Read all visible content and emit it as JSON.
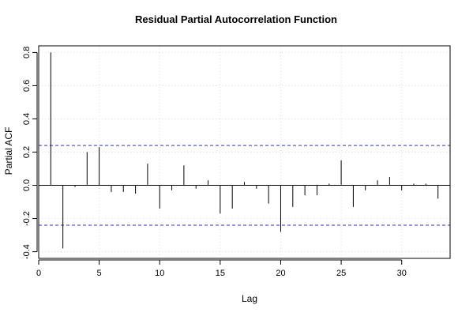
{
  "chart_data": {
    "type": "bar",
    "title": "Residual Partial Autocorrelation Function",
    "xlabel": "Lag",
    "ylabel": "Partial ACF",
    "xlim": [
      0,
      34
    ],
    "ylim": [
      -0.44,
      0.84
    ],
    "x_ticks": [
      0,
      5,
      10,
      15,
      20,
      25,
      30
    ],
    "y_ticks": [
      -0.4,
      -0.2,
      0.0,
      0.2,
      0.4,
      0.6,
      0.8
    ],
    "lags": [
      1,
      2,
      3,
      4,
      5,
      6,
      7,
      8,
      9,
      10,
      11,
      12,
      13,
      14,
      15,
      16,
      17,
      18,
      19,
      20,
      21,
      22,
      23,
      24,
      25,
      26,
      27,
      28,
      29,
      30,
      31,
      32,
      33
    ],
    "values": [
      0.8,
      -0.38,
      -0.01,
      0.2,
      0.23,
      -0.04,
      -0.04,
      -0.05,
      0.13,
      -0.14,
      -0.03,
      0.12,
      -0.02,
      0.03,
      -0.17,
      -0.14,
      0.02,
      -0.02,
      -0.11,
      -0.28,
      -0.13,
      -0.06,
      -0.06,
      0.01,
      0.15,
      -0.13,
      -0.03,
      0.03,
      0.05,
      -0.03,
      0.01,
      0.01,
      -0.08
    ],
    "confidence_bounds": [
      0.24,
      -0.24
    ],
    "confidence_color": "#3333cc",
    "grid": true,
    "bar_color": "#000000"
  }
}
